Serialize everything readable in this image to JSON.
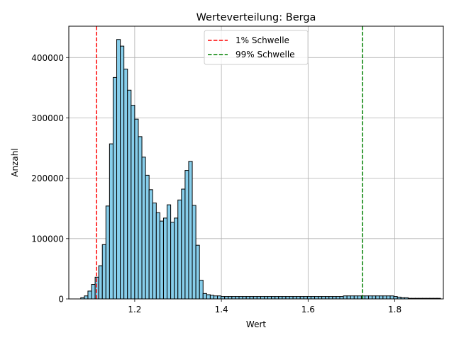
{
  "chart_data": {
    "type": "bar",
    "title": "Werteverteilung: Berga",
    "xlabel": "Wert",
    "ylabel": "Anzahl",
    "xlim": [
      1.048,
      1.912
    ],
    "ylim": [
      0,
      452000
    ],
    "xticks": [
      1.2,
      1.4,
      1.6,
      1.8
    ],
    "xtick_labels": [
      "1.2",
      "1.4",
      "1.6",
      "1.8"
    ],
    "yticks": [
      0,
      100000,
      200000,
      300000,
      400000
    ],
    "ytick_labels": [
      "0",
      "100000",
      "200000",
      "300000",
      "400000"
    ],
    "grid": true,
    "bar_color": "#87ceeb",
    "edge_color": "#000000",
    "bin_start": 1.0755,
    "bin_width": 0.0083,
    "values": [
      2000,
      5000,
      13000,
      24000,
      36000,
      55000,
      90000,
      154000,
      257000,
      367000,
      430000,
      419000,
      381000,
      346000,
      321000,
      298000,
      269000,
      235000,
      205000,
      181000,
      159000,
      143000,
      129000,
      134000,
      156000,
      127000,
      134000,
      164000,
      182000,
      213000,
      228000,
      155000,
      89000,
      31000,
      9000,
      7000,
      6000,
      5000,
      5000,
      4000,
      4000,
      4000,
      4000,
      4000,
      4000,
      4000,
      4000,
      4000,
      4000,
      4000,
      4000,
      4000,
      4000,
      4000,
      4000,
      4000,
      4000,
      4000,
      4000,
      4000,
      4000,
      4000,
      4000,
      4000,
      4000,
      4000,
      4000,
      4000,
      4000,
      4000,
      4000,
      4000,
      4000,
      5000,
      5000,
      5000,
      5000,
      5000,
      5000,
      5000,
      5000,
      5000,
      5000,
      5000,
      5000,
      5000,
      5000,
      4000,
      3000,
      2000,
      2000,
      1000,
      1000,
      1000,
      1000,
      1000,
      1000,
      1000,
      1000,
      1000
    ],
    "thresholds": [
      {
        "name": "1% Schwelle",
        "value": 1.112,
        "color": "#ff0000"
      },
      {
        "name": "99% Schwelle",
        "value": 1.7255,
        "color": "#008000"
      }
    ],
    "legend_position": "top-center"
  }
}
